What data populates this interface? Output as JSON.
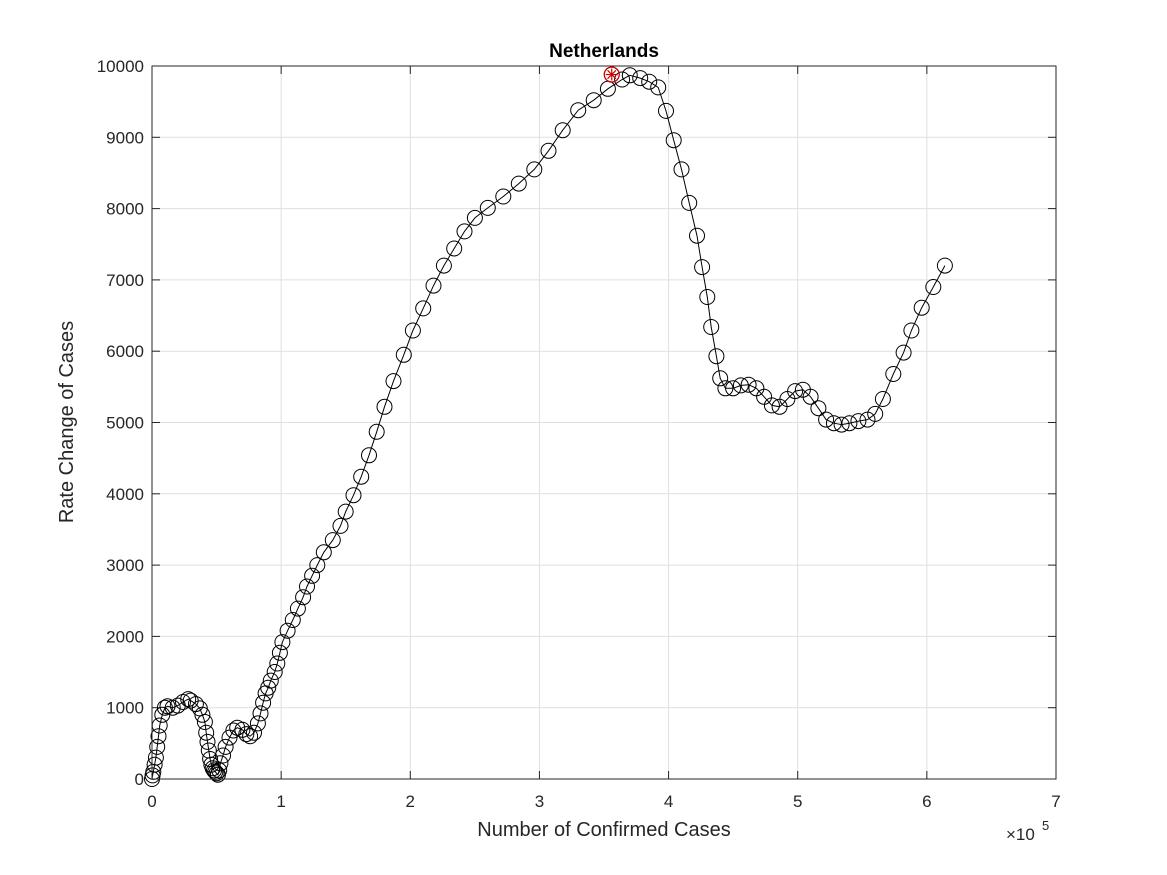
{
  "chart_data": {
    "type": "scatter",
    "title": "Netherlands",
    "xlabel": "Number of Confirmed Cases",
    "ylabel": "Rate Change of Cases",
    "x_exponent_label": "×10",
    "x_exponent_power": "5",
    "xlim": [
      0,
      7
    ],
    "ylim": [
      0,
      10000
    ],
    "x_scale_note": "x values in units of 1e5",
    "xticks": [
      0,
      1,
      2,
      3,
      4,
      5,
      6,
      7
    ],
    "yticks": [
      0,
      1000,
      2000,
      3000,
      4000,
      5000,
      6000,
      7000,
      8000,
      9000,
      10000
    ],
    "grid": true,
    "series": [
      {
        "marker": "circle",
        "line": true,
        "color": "#000000",
        "points": [
          [
            0.0,
            0
          ],
          [
            0.005,
            50
          ],
          [
            0.01,
            100
          ],
          [
            0.02,
            200
          ],
          [
            0.03,
            300
          ],
          [
            0.04,
            450
          ],
          [
            0.05,
            600
          ],
          [
            0.06,
            750
          ],
          [
            0.08,
            900
          ],
          [
            0.1,
            1000
          ],
          [
            0.12,
            1020
          ],
          [
            0.16,
            1000
          ],
          [
            0.2,
            1030
          ],
          [
            0.24,
            1080
          ],
          [
            0.28,
            1120
          ],
          [
            0.3,
            1100
          ],
          [
            0.34,
            1050
          ],
          [
            0.37,
            990
          ],
          [
            0.39,
            900
          ],
          [
            0.41,
            800
          ],
          [
            0.42,
            650
          ],
          [
            0.43,
            520
          ],
          [
            0.44,
            400
          ],
          [
            0.45,
            280
          ],
          [
            0.46,
            200
          ],
          [
            0.47,
            150
          ],
          [
            0.48,
            120
          ],
          [
            0.49,
            100
          ],
          [
            0.5,
            80
          ],
          [
            0.51,
            60
          ],
          [
            0.52,
            120
          ],
          [
            0.53,
            220
          ],
          [
            0.55,
            330
          ],
          [
            0.57,
            450
          ],
          [
            0.6,
            580
          ],
          [
            0.63,
            680
          ],
          [
            0.66,
            720
          ],
          [
            0.7,
            690
          ],
          [
            0.73,
            630
          ],
          [
            0.76,
            600
          ],
          [
            0.79,
            650
          ],
          [
            0.82,
            780
          ],
          [
            0.84,
            920
          ],
          [
            0.86,
            1070
          ],
          [
            0.88,
            1200
          ],
          [
            0.9,
            1280
          ],
          [
            0.92,
            1380
          ],
          [
            0.95,
            1500
          ],
          [
            0.97,
            1620
          ],
          [
            0.99,
            1770
          ],
          [
            1.01,
            1920
          ],
          [
            1.05,
            2080
          ],
          [
            1.09,
            2230
          ],
          [
            1.13,
            2390
          ],
          [
            1.17,
            2550
          ],
          [
            1.2,
            2700
          ],
          [
            1.24,
            2850
          ],
          [
            1.28,
            3000
          ],
          [
            1.33,
            3180
          ],
          [
            1.4,
            3350
          ],
          [
            1.46,
            3550
          ],
          [
            1.5,
            3750
          ],
          [
            1.56,
            3980
          ],
          [
            1.62,
            4240
          ],
          [
            1.68,
            4540
          ],
          [
            1.74,
            4870
          ],
          [
            1.8,
            5220
          ],
          [
            1.87,
            5580
          ],
          [
            1.95,
            5950
          ],
          [
            2.02,
            6290
          ],
          [
            2.1,
            6600
          ],
          [
            2.18,
            6920
          ],
          [
            2.26,
            7200
          ],
          [
            2.34,
            7440
          ],
          [
            2.42,
            7680
          ],
          [
            2.5,
            7870
          ],
          [
            2.6,
            8010
          ],
          [
            2.72,
            8170
          ],
          [
            2.84,
            8350
          ],
          [
            2.96,
            8550
          ],
          [
            3.07,
            8810
          ],
          [
            3.18,
            9100
          ],
          [
            3.3,
            9380
          ],
          [
            3.42,
            9520
          ],
          [
            3.53,
            9680
          ],
          [
            3.64,
            9810
          ],
          [
            3.7,
            9870
          ],
          [
            3.78,
            9830
          ],
          [
            3.85,
            9780
          ],
          [
            3.92,
            9700
          ],
          [
            3.98,
            9370
          ],
          [
            4.04,
            8960
          ],
          [
            4.1,
            8550
          ],
          [
            4.16,
            8080
          ],
          [
            4.22,
            7620
          ],
          [
            4.26,
            7180
          ],
          [
            4.3,
            6760
          ],
          [
            4.33,
            6340
          ],
          [
            4.37,
            5930
          ],
          [
            4.4,
            5620
          ],
          [
            4.44,
            5480
          ],
          [
            4.5,
            5480
          ],
          [
            4.56,
            5520
          ],
          [
            4.62,
            5530
          ],
          [
            4.68,
            5480
          ],
          [
            4.74,
            5360
          ],
          [
            4.8,
            5240
          ],
          [
            4.86,
            5220
          ],
          [
            4.92,
            5330
          ],
          [
            4.98,
            5440
          ],
          [
            5.04,
            5460
          ],
          [
            5.1,
            5360
          ],
          [
            5.16,
            5200
          ],
          [
            5.22,
            5040
          ],
          [
            5.28,
            4990
          ],
          [
            5.34,
            4970
          ],
          [
            5.4,
            4990
          ],
          [
            5.47,
            5020
          ],
          [
            5.54,
            5040
          ],
          [
            5.6,
            5120
          ],
          [
            5.66,
            5330
          ],
          [
            5.74,
            5680
          ],
          [
            5.82,
            5980
          ],
          [
            5.88,
            6290
          ],
          [
            5.96,
            6610
          ],
          [
            6.05,
            6900
          ],
          [
            6.14,
            7200
          ]
        ]
      }
    ],
    "highlight": {
      "x": 3.56,
      "y": 9880,
      "color": "#cc0000",
      "marker": "circle-star"
    }
  }
}
